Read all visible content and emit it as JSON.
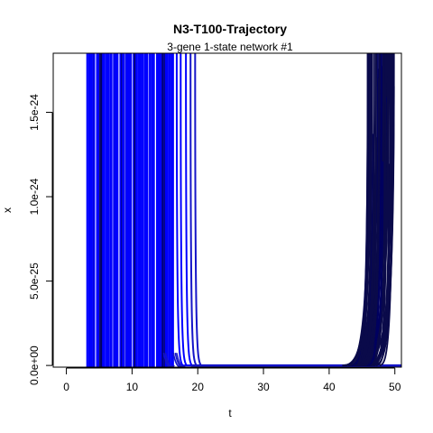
{
  "chart_data": {
    "type": "line",
    "title": "N3-T100-Trajectory",
    "subtitle": "3-gene 1-state network #1",
    "xlabel": "t",
    "ylabel": "x",
    "xlim": [
      -2,
      51
    ],
    "ylim": [
      -1e-26,
      1.85e-24
    ],
    "xticks": [
      0,
      10,
      20,
      30,
      40,
      50
    ],
    "xtick_labels": [
      "0",
      "10",
      "20",
      "30",
      "40",
      "50"
    ],
    "yticks": [
      0,
      5e-25,
      1e-24,
      1.5e-24
    ],
    "ytick_labels": [
      "0.0e+00",
      "5.0e-25",
      "1.0e-24",
      "1.5e-24"
    ],
    "grid": false,
    "legend": "none",
    "colors": {
      "early": "#0000ff",
      "mid": "#1515c8",
      "late": "#0a0a4a",
      "dark": "#000060"
    },
    "series": [
      {
        "group": "decay",
        "color": "#0000ff",
        "x": [
          3,
          4,
          5,
          6,
          7,
          8,
          9,
          10,
          11,
          12,
          13,
          14,
          15,
          16,
          17,
          18,
          19,
          20
        ],
        "y": [
          1.85e-24,
          1.85e-24,
          1.85e-24,
          1.85e-24,
          1.85e-24,
          1.85e-24,
          1.85e-24,
          1.85e-24,
          1.85e-24,
          1.85e-24,
          1.85e-24,
          1.85e-24,
          1.85e-24,
          1.85e-24,
          1.85e-24,
          1e-25,
          1e-26,
          0
        ]
      },
      {
        "group": "decay-tail",
        "color": "#1515c8",
        "x": [
          17,
          18,
          19,
          20,
          25,
          30,
          35,
          40,
          45,
          50
        ],
        "y": [
          1.85e-24,
          3e-26,
          2e-27,
          0,
          0,
          0,
          0,
          0,
          0,
          0
        ]
      },
      {
        "group": "rise",
        "color": "#0a0a4a",
        "x": [
          20,
          25,
          30,
          35,
          40,
          45,
          46,
          47,
          48,
          49,
          50
        ],
        "y": [
          0,
          0,
          0,
          0,
          0,
          1e-27,
          5e-27,
          3e-26,
          2e-25,
          9e-25,
          1.85e-24
        ]
      }
    ]
  }
}
